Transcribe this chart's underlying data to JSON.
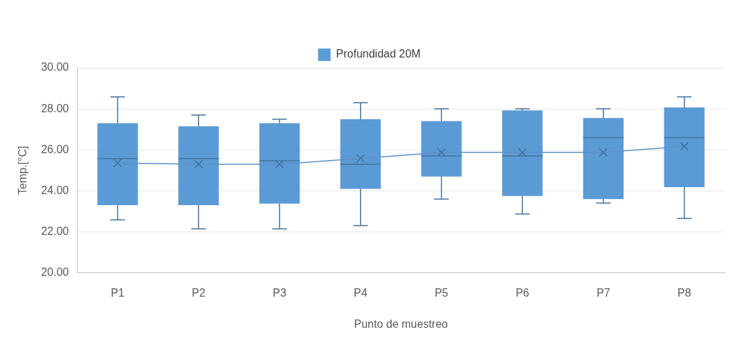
{
  "chart_data": {
    "type": "box",
    "xlabel": "Punto de muestreo",
    "ylabel": "Temp.[°C]",
    "categories": [
      "P1",
      "P2",
      "P3",
      "P4",
      "P5",
      "P6",
      "P7",
      "P8"
    ],
    "series": [
      {
        "name": "Profundidad 20M",
        "color": "#5b9bd5",
        "boxes": [
          {
            "low": 22.58,
            "q1": 23.3,
            "median": 25.58,
            "q3": 27.3,
            "high": 28.59,
            "mean": 25.36
          },
          {
            "low": 22.14,
            "q1": 23.3,
            "median": 25.58,
            "q3": 27.15,
            "high": 27.7,
            "mean": 25.3
          },
          {
            "low": 22.14,
            "q1": 23.38,
            "median": 25.47,
            "q3": 27.3,
            "high": 27.5,
            "mean": 25.3
          },
          {
            "low": 22.3,
            "q1": 24.1,
            "median": 25.3,
            "q3": 27.5,
            "high": 28.3,
            "mean": 25.58
          },
          {
            "low": 23.6,
            "q1": 24.7,
            "median": 25.7,
            "q3": 27.4,
            "high": 28.0,
            "mean": 25.88
          },
          {
            "low": 22.87,
            "q1": 23.75,
            "median": 25.7,
            "q3": 27.93,
            "high": 28.0,
            "mean": 25.88
          },
          {
            "low": 23.4,
            "q1": 23.6,
            "median": 26.6,
            "q3": 27.56,
            "high": 28.0,
            "mean": 25.88
          },
          {
            "low": 22.65,
            "q1": 24.18,
            "median": 26.6,
            "q3": 28.07,
            "high": 28.59,
            "mean": 26.17
          }
        ]
      },
      {
        "type": "line",
        "color": "#5b8fc7",
        "values": [
          25.36,
          25.3,
          25.3,
          25.58,
          25.88,
          25.88,
          25.88,
          26.17
        ]
      }
    ],
    "ylim": [
      20,
      30
    ],
    "yticks": [
      {
        "value": 20,
        "label": "20.00"
      },
      {
        "value": 22,
        "label": "22.00"
      },
      {
        "value": 24,
        "label": "24.00"
      },
      {
        "value": 26,
        "label": "26.00"
      },
      {
        "value": 28,
        "label": "28.00"
      },
      {
        "value": 30,
        "label": "30.00"
      }
    ],
    "grid": "y",
    "legend": "top"
  }
}
